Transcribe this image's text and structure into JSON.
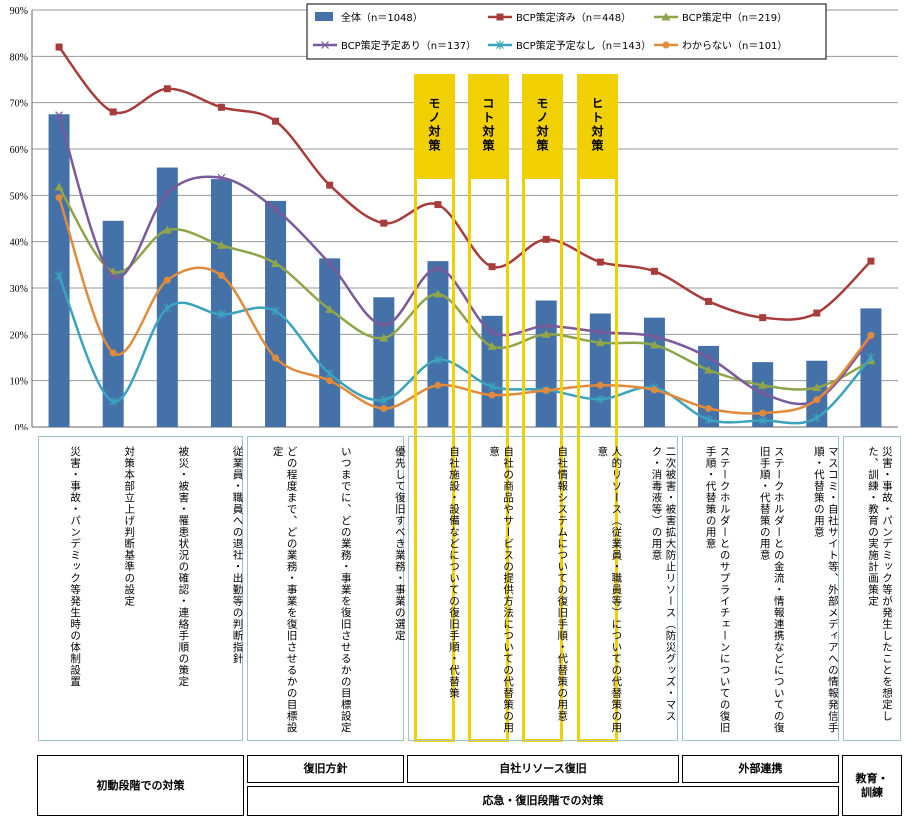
{
  "chart_data": {
    "type": "bar+line",
    "ylim": [
      0,
      90
    ],
    "yticks": [
      "0%",
      "10%",
      "20%",
      "30%",
      "40%",
      "50%",
      "60%",
      "70%",
      "80%",
      "90%"
    ],
    "categories": [
      "災害・事故・パンデミック等発生時の体制設置",
      "対策本部立上げ判断基準の設定",
      "被災・被害・罹患状況の確認・連絡手順の策定",
      "従業員・職員への退社・出勤等の判断指針",
      "どの程度まで、どの業務・事業を復旧させるかの目標設定",
      "いつまでに、どの業務・事業を復旧させるかの目標設定",
      "優先して復旧すべき業務・事業の選定",
      "自社施設・設備などについての復旧手順・代替策",
      "自社の商品やサービスの提供方法についての代替策の用意",
      "自社情報システムについての復旧手順・代替策の用意",
      "人的リソース（従業員・職員等）についての代替策の用意",
      "二次被害・被害拡大防止リソース（防災グッズ・マスク・消毒液等）の用意",
      "ステークホルダーとのサプライチェーンについての復旧手順・代替策の用意",
      "ステークホルダーとの金流・情報連携などについての復旧手順・代替策の用意",
      "マスコミ・自社サイト等、外部メディアへの情報発信手順・代替策の用意",
      "災害・事故・パンデミック等が発生したことを想定した、訓練・教育の実施計画策定"
    ],
    "bars": {
      "name": "全体（n＝1048）",
      "color": "#4472a8",
      "values": [
        67.5,
        44.5,
        56,
        53.5,
        48.8,
        36.4,
        28,
        35.8,
        24,
        27.3,
        24.5,
        23.6,
        17.5,
        14,
        14.3,
        25.6
      ]
    },
    "series": [
      {
        "name": "BCP策定済み（n＝448）",
        "color": "#a83c3a",
        "marker": "square",
        "values": [
          82,
          68,
          73,
          69,
          66,
          52.2,
          44,
          48,
          34.6,
          40.5,
          35.6,
          33.6,
          27.1,
          23.6,
          24.6,
          35.8
        ]
      },
      {
        "name": "BCP策定中（n＝219）",
        "color": "#8ea54a",
        "marker": "triangle",
        "values": [
          51.8,
          33.5,
          42.5,
          39.2,
          35.3,
          25.4,
          19.2,
          28.7,
          17.4,
          20,
          18.2,
          17.7,
          12.3,
          9,
          8.5,
          14.3
        ]
      },
      {
        "name": "BCP策定予定あり（n＝137）",
        "color": "#7a5a9a",
        "marker": "x",
        "values": [
          67.3,
          32.5,
          50.5,
          53.8,
          47,
          35.3,
          22,
          34.2,
          20.5,
          21.8,
          20.5,
          19.5,
          15,
          7.3,
          5.8,
          19.2
        ]
      },
      {
        "name": "BCP策定予定なし（n＝143）",
        "color": "#3ba3bd",
        "marker": "asterisk",
        "values": [
          32.6,
          5.5,
          25.7,
          24.3,
          25,
          11.5,
          5.8,
          14.5,
          8.7,
          8,
          6,
          8.5,
          1.6,
          1.4,
          2,
          15
        ]
      },
      {
        "name": "わからない（n＝101）",
        "color": "#e08a3c",
        "marker": "circle",
        "values": [
          49.5,
          16,
          31.7,
          32.7,
          14.9,
          10,
          4,
          9,
          6.9,
          7.9,
          9,
          8,
          4,
          3,
          5.9,
          19.8
        ]
      }
    ]
  },
  "highlights": [
    "モノ対策",
    "コト対策",
    "モノ対策",
    "ヒト対策"
  ],
  "footer": {
    "initial": "初動段階での対策",
    "policy": "復旧方針",
    "resource": "自社リソース復旧",
    "external": "外部連携",
    "training": "教育・訓練",
    "emergency": "応急・復旧段階での対策"
  }
}
